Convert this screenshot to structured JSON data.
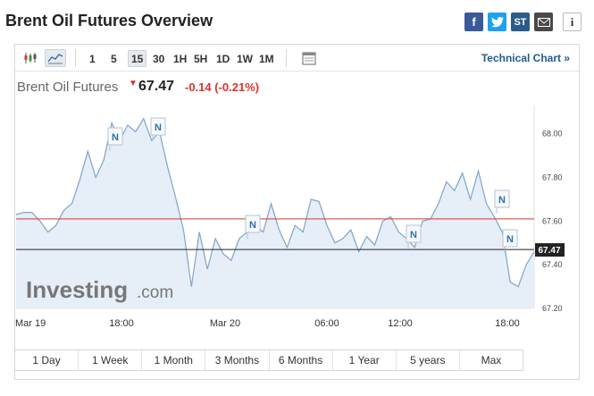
{
  "header": {
    "title": "Brent Oil Futures Overview",
    "share_fb": "f",
    "share_tw": "t",
    "share_st": "ST",
    "share_info": "i"
  },
  "toolbar": {
    "timeframes": [
      "1",
      "5",
      "15",
      "30",
      "1H",
      "5H",
      "1D",
      "1W",
      "1M"
    ],
    "selected_timeframe": "15",
    "technical_link": "Technical Chart »"
  },
  "quote": {
    "name": "Brent Oil Futures",
    "price": "67.47",
    "change": "-0.14",
    "change_pct": "(-0.21%)",
    "down_color": "#d9342b"
  },
  "watermark": {
    "brand": "Investing",
    "suffix": ".com"
  },
  "chart_data": {
    "type": "area",
    "y_ticks": [
      "68.00",
      "67.80",
      "67.60",
      "67.40",
      "67.20"
    ],
    "ylim": [
      67.2,
      68.13
    ],
    "x_tick_labels": [
      "Mar 19",
      "18:00",
      "Mar 20",
      "06:00",
      "12:00",
      "18:00"
    ],
    "reference_line": 67.61,
    "reference_color": "#d9342b",
    "last_price_label": "67.47",
    "last_price": 67.47,
    "news_markers": [
      "N",
      "N",
      "N",
      "N",
      "N",
      "N"
    ],
    "y": [
      67.63,
      67.64,
      67.64,
      67.6,
      67.55,
      67.58,
      67.65,
      67.68,
      67.79,
      67.92,
      67.8,
      67.88,
      68.05,
      67.97,
      68.04,
      68.01,
      68.07,
      67.97,
      68.01,
      67.85,
      67.71,
      67.56,
      67.3,
      67.55,
      67.38,
      67.52,
      67.45,
      67.42,
      67.52,
      67.55,
      67.58,
      67.55,
      67.68,
      67.56,
      67.48,
      67.58,
      67.55,
      67.7,
      67.69,
      67.58,
      67.5,
      67.52,
      67.56,
      67.46,
      67.53,
      67.49,
      67.6,
      67.62,
      67.55,
      67.52,
      67.48,
      67.6,
      67.61,
      67.68,
      67.78,
      67.74,
      67.82,
      67.7,
      67.83,
      67.68,
      67.62,
      67.55,
      67.32,
      67.3,
      67.4,
      67.46
    ],
    "line_color": "#7ea4c8",
    "fill_color": "#e6eef7"
  },
  "periods": [
    "1 Day",
    "1 Week",
    "1 Month",
    "3 Months",
    "6 Months",
    "1 Year",
    "5 years",
    "Max"
  ]
}
